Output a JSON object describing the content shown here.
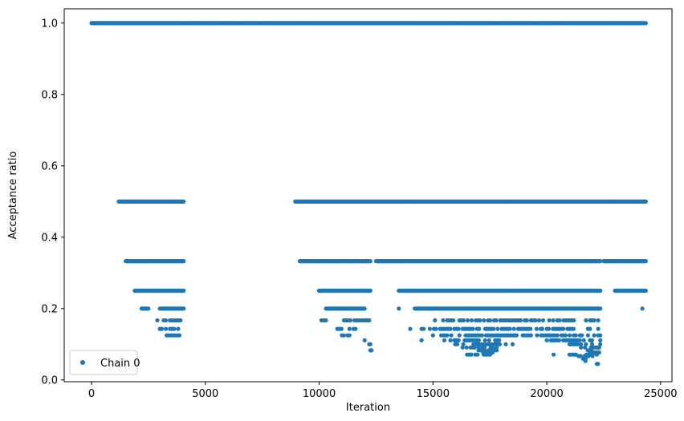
{
  "chart_data": {
    "type": "scatter",
    "xlabel": "Iteration",
    "ylabel": "Acceptance ratio",
    "xlim": [
      -1200,
      25500
    ],
    "ylim": [
      -0.005,
      1.04
    ],
    "xticks": [
      0,
      5000,
      10000,
      15000,
      20000,
      25000
    ],
    "xtick_labels": [
      "0",
      "5000",
      "10000",
      "15000",
      "20000",
      "25000"
    ],
    "yticks": [
      0.0,
      0.2,
      0.4,
      0.6,
      0.8,
      1.0
    ],
    "ytick_labels": [
      "0.0",
      "0.2",
      "0.4",
      "0.6",
      "0.8",
      "1.0"
    ],
    "grid": false,
    "legend_position": "lower-left",
    "marker_color": "#1f77b4",
    "series": [
      {
        "name": "Chain 0",
        "bands": [
          {
            "y": 1.0,
            "ranges": [
              [
                0,
                24350
              ]
            ]
          },
          {
            "y": 0.5,
            "ranges": [
              [
                1200,
                4050
              ],
              [
                8950,
                24350
              ]
            ]
          },
          {
            "y": 0.333,
            "ranges": [
              [
                1500,
                4050
              ],
              [
                9150,
                12250
              ],
              [
                12500,
                22350
              ],
              [
                22500,
                24350
              ]
            ]
          },
          {
            "y": 0.25,
            "ranges": [
              [
                1900,
                4050
              ],
              [
                10000,
                12250
              ],
              [
                13500,
                22350
              ],
              [
                23000,
                24350
              ]
            ]
          },
          {
            "y": 0.2,
            "ranges": [
              [
                2200,
                2500
              ],
              [
                3000,
                4050
              ],
              [
                10300,
                12000
              ],
              [
                14200,
                22350
              ]
            ]
          },
          {
            "y": 0.167,
            "ranges": [
              [
                2800,
                4000
              ],
              [
                10100,
                10300
              ],
              [
                11000,
                12200
              ],
              [
                15000,
                22350
              ]
            ]
          },
          {
            "y": 0.143,
            "ranges": [
              [
                3000,
                3900
              ],
              [
                10800,
                11600
              ],
              [
                14500,
                22350
              ]
            ]
          },
          {
            "y": 0.125,
            "ranges": [
              [
                3300,
                4050
              ],
              [
                11000,
                11500
              ],
              [
                15000,
                22350
              ]
            ]
          },
          {
            "y": 0.111,
            "ranges": [
              [
                11800,
                12000
              ],
              [
                15500,
                18000
              ],
              [
                20000,
                22350
              ]
            ]
          },
          {
            "y": 0.1,
            "ranges": [
              [
                12200,
                12300
              ],
              [
                15800,
                18200
              ],
              [
                21000,
                22350
              ]
            ]
          },
          {
            "y": 0.091,
            "ranges": [
              [
                16300,
                17800
              ],
              [
                21500,
                22300
              ]
            ]
          },
          {
            "y": 0.083,
            "ranges": [
              [
                12250,
                12300
              ],
              [
                17000,
                17800
              ],
              [
                21800,
                22300
              ]
            ]
          },
          {
            "y": 0.077,
            "ranges": [
              [
                17200,
                17700
              ],
              [
                21900,
                22300
              ]
            ]
          },
          {
            "y": 0.071,
            "ranges": [
              [
                16500,
                17600
              ],
              [
                21000,
                22200
              ]
            ]
          },
          {
            "y": 0.067,
            "ranges": [
              [
                17700,
                17800
              ],
              [
                21400,
                22100
              ]
            ]
          },
          {
            "y": 0.059,
            "ranges": [
              [
                17800,
                17850
              ],
              [
                21600,
                21700
              ]
            ]
          },
          {
            "y": 0.045,
            "ranges": [
              [
                22200,
                22250
              ]
            ]
          }
        ],
        "extra_points": [
          [
            19800,
            0.143
          ],
          [
            24200,
            0.2
          ],
          [
            24000,
            0.25
          ],
          [
            21500,
            0.1
          ],
          [
            16000,
            0.111
          ],
          [
            18500,
            0.1
          ],
          [
            13500,
            0.2
          ],
          [
            14000,
            0.143
          ],
          [
            14500,
            0.111
          ],
          [
            18200,
            0.125
          ],
          [
            19500,
            0.167
          ],
          [
            20300,
            0.071
          ],
          [
            21700,
            0.053
          ]
        ]
      }
    ]
  }
}
